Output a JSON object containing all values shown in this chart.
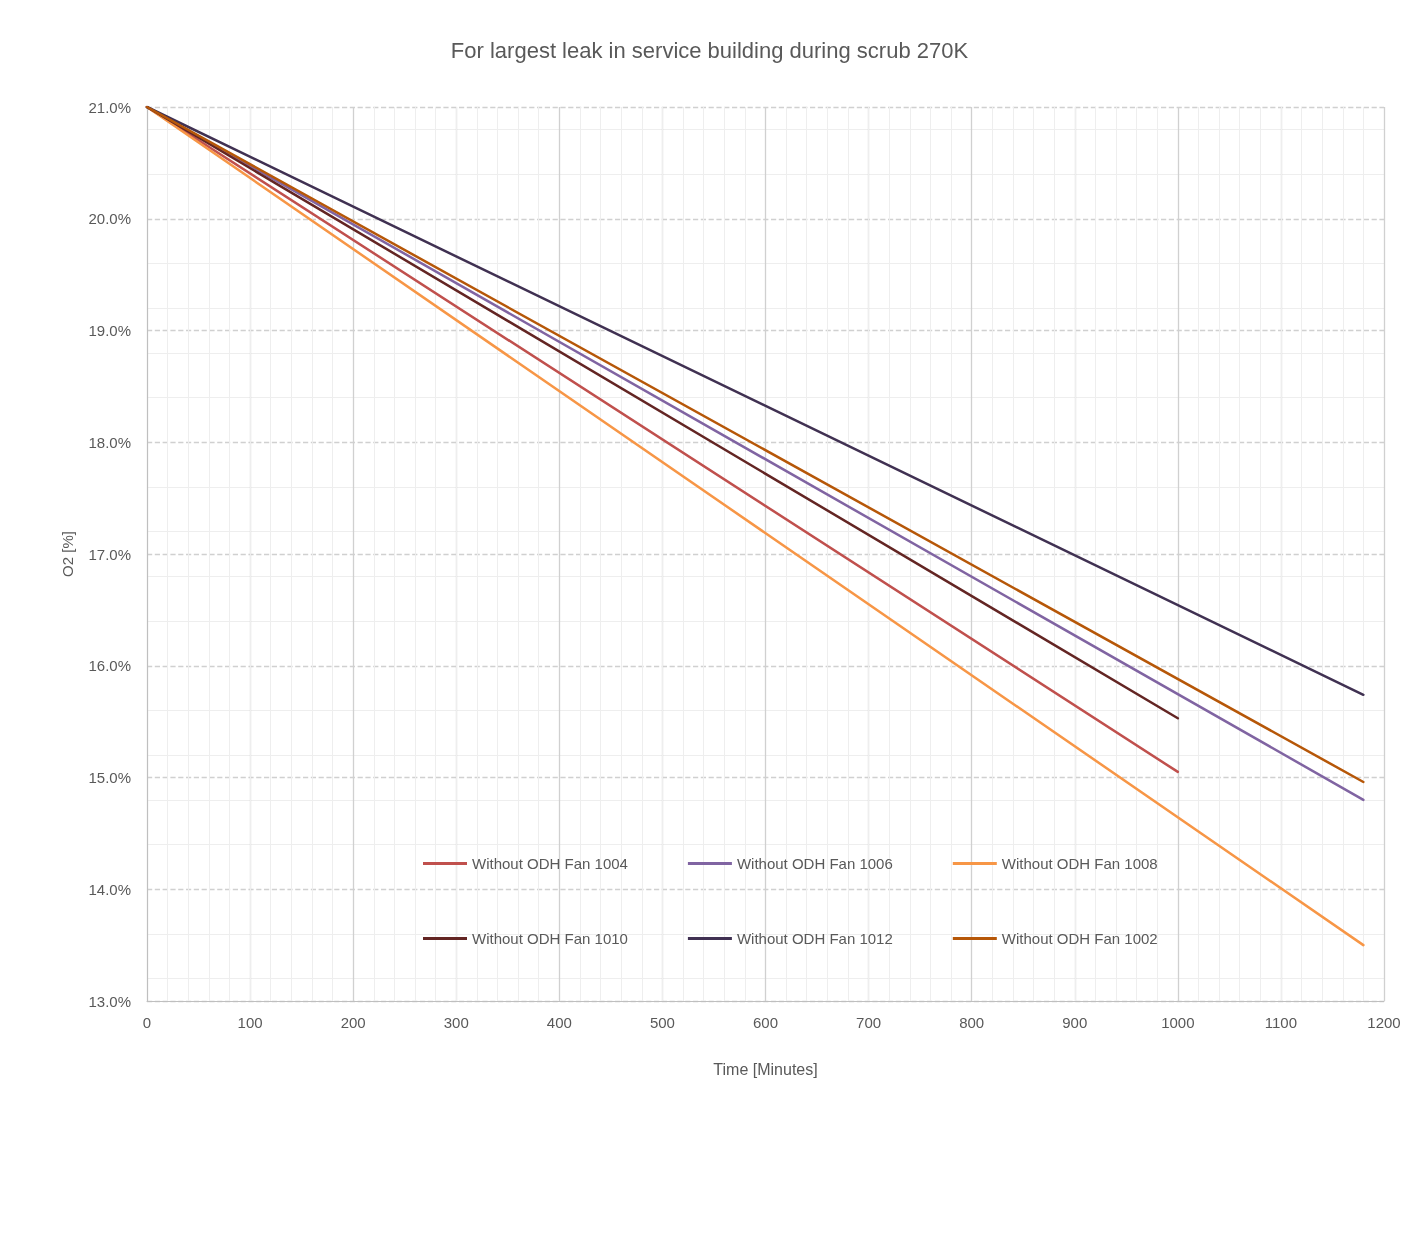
{
  "chart_data": {
    "type": "line",
    "title": "For largest leak in service building during scrub 270K",
    "xlabel": "Time [Minutes]",
    "ylabel": "O2 [%]",
    "xlim": [
      0,
      1200
    ],
    "xticks": [
      0,
      100,
      200,
      300,
      400,
      500,
      600,
      700,
      800,
      900,
      1000,
      1100,
      1200
    ],
    "ylim": [
      13,
      21
    ],
    "yticks": [
      {
        "value": 13,
        "label": "13.0%"
      },
      {
        "value": 14,
        "label": "14.0%"
      },
      {
        "value": 15,
        "label": "15.0%"
      },
      {
        "value": 16,
        "label": "16.0%"
      },
      {
        "value": 17,
        "label": "17.0%"
      },
      {
        "value": 18,
        "label": "18.0%"
      },
      {
        "value": 19,
        "label": "19.0%"
      },
      {
        "value": 20,
        "label": "20.0%"
      },
      {
        "value": 21,
        "label": "21.0%"
      }
    ],
    "grid": true,
    "legend": "bottom",
    "marker": "none",
    "line_style": "solid",
    "series": [
      {
        "name": "Without ODH Fan 1004",
        "color": "#c0504d",
        "x": [
          0,
          1000
        ],
        "values": [
          21,
          15.05
        ]
      },
      {
        "name": "Without ODH Fan 1006",
        "color": "#8064a2",
        "x": [
          0,
          1180
        ],
        "values": [
          21,
          14.8
        ]
      },
      {
        "name": "Without ODH Fan 1008",
        "color": "#f79646",
        "x": [
          0,
          1180
        ],
        "values": [
          21,
          13.5
        ]
      },
      {
        "name": "Without ODH Fan 1010",
        "color": "#632523",
        "x": [
          0,
          1000
        ],
        "values": [
          21,
          15.53
        ]
      },
      {
        "name": "Without ODH Fan 1012",
        "color": "#403152",
        "x": [
          0,
          1180
        ],
        "values": [
          21,
          15.74
        ]
      },
      {
        "name": "Without ODH Fan 1002",
        "color": "#b65708",
        "x": [
          0,
          1180
        ],
        "values": [
          21,
          14.96
        ]
      }
    ]
  }
}
